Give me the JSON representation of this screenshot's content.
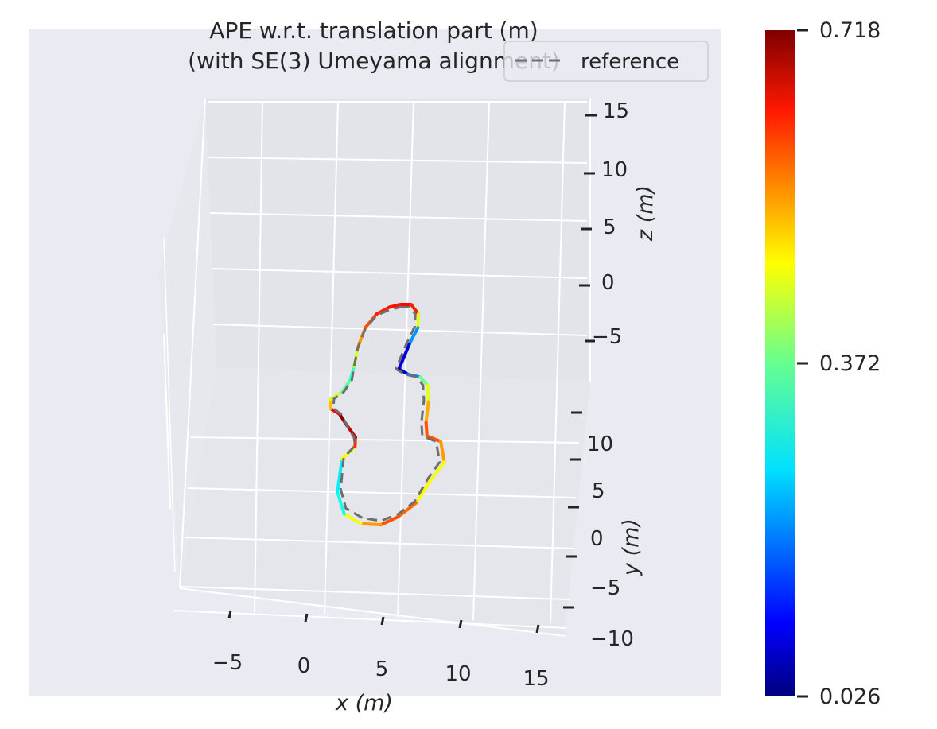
{
  "chart_data": {
    "type": "line",
    "projection": "3d",
    "title": "APE w.r.t. translation part (m)\n(with SE(3) Umeyama alignment)",
    "title_lines": [
      "APE w.r.t. translation part (m)",
      "(with SE(3) Umeyama alignment)"
    ],
    "xlabel": "x (m)",
    "ylabel": "y (m)",
    "zlabel": "z (m)",
    "x_ticks": [
      "−5",
      "0",
      "5",
      "10",
      "15"
    ],
    "y_ticks": [
      "−10",
      "−5",
      "0",
      "5",
      "10"
    ],
    "z_ticks": [
      "−5",
      "0",
      "5",
      "10",
      "15"
    ],
    "grid": true,
    "legend": {
      "placement": "top-right",
      "entries": [
        {
          "label": "reference",
          "style": "dashed",
          "color": "#6e6e6e"
        }
      ]
    },
    "colorbar": {
      "colormap": "jet",
      "min": 0.026,
      "max": 0.718,
      "tick_labels": [
        "0.718",
        "0.372",
        "0.026"
      ],
      "tick_values": [
        0.718,
        0.372,
        0.026
      ]
    },
    "series": [
      {
        "name": "reference",
        "style": "dashed",
        "color": "#6e6e6e",
        "points": [
          [
            1.3,
            7.6,
            1.8
          ],
          [
            1.9,
            7.6,
            1.8
          ],
          [
            2.3,
            7.3,
            1.6
          ],
          [
            2.3,
            6.6,
            1.4
          ],
          [
            1.8,
            5.6,
            1.1
          ],
          [
            1.2,
            4.3,
            0.6
          ],
          [
            1.8,
            3.9,
            0.6
          ],
          [
            2.6,
            3.7,
            0.6
          ],
          [
            3.0,
            3.3,
            0.4
          ],
          [
            3.1,
            2.5,
            0.1
          ],
          [
            3.0,
            1.3,
            -0.3
          ],
          [
            3.1,
            0.5,
            -0.5
          ],
          [
            4.0,
            0.2,
            -0.6
          ],
          [
            4.3,
            -1.0,
            -0.9
          ],
          [
            3.6,
            -2.0,
            -1.1
          ],
          [
            2.8,
            -3.4,
            -1.4
          ],
          [
            1.8,
            -4.1,
            -1.6
          ],
          [
            0.7,
            -4.5,
            -1.7
          ],
          [
            -0.5,
            -4.4,
            -1.6
          ],
          [
            -1.6,
            -3.8,
            -1.5
          ],
          [
            -2.0,
            -2.7,
            -1.2
          ],
          [
            -1.9,
            -0.9,
            -0.7
          ],
          [
            -1.2,
            -0.2,
            -0.5
          ],
          [
            -1.3,
            0.3,
            -0.4
          ],
          [
            -1.8,
            1.0,
            -0.2
          ],
          [
            -2.2,
            1.6,
            0.0
          ],
          [
            -2.7,
            1.9,
            0.1
          ],
          [
            -2.7,
            2.5,
            0.2
          ],
          [
            -2.1,
            2.9,
            0.3
          ],
          [
            -1.6,
            3.6,
            0.5
          ],
          [
            -1.5,
            4.4,
            0.7
          ],
          [
            -1.3,
            5.5,
            1.0
          ],
          [
            -0.9,
            6.5,
            1.3
          ],
          [
            -0.2,
            7.2,
            1.6
          ],
          [
            0.6,
            7.5,
            1.7
          ],
          [
            1.3,
            7.6,
            1.8
          ]
        ]
      },
      {
        "name": "estimate",
        "style": "solid",
        "colormap": "jet",
        "points": [
          [
            1.3,
            7.8,
            1.8,
            0.62
          ],
          [
            2.0,
            7.8,
            1.8,
            0.64
          ],
          [
            2.5,
            7.3,
            1.6,
            0.58
          ],
          [
            2.5,
            6.5,
            1.4,
            0.3
          ],
          [
            2.0,
            5.6,
            1.1,
            0.12
          ],
          [
            1.4,
            4.3,
            0.6,
            0.05
          ],
          [
            2.0,
            3.9,
            0.6,
            0.08
          ],
          [
            2.8,
            3.7,
            0.6,
            0.32
          ],
          [
            3.3,
            3.3,
            0.4,
            0.4
          ],
          [
            3.4,
            2.4,
            0.1,
            0.48
          ],
          [
            3.3,
            1.3,
            -0.3,
            0.55
          ],
          [
            3.4,
            0.5,
            -0.5,
            0.6
          ],
          [
            4.3,
            0.2,
            -0.6,
            0.55
          ],
          [
            4.6,
            -1.0,
            -0.9,
            0.5
          ],
          [
            3.8,
            -2.1,
            -1.1,
            0.4
          ],
          [
            2.9,
            -3.5,
            -1.4,
            0.52
          ],
          [
            1.8,
            -4.3,
            -1.6,
            0.6
          ],
          [
            0.7,
            -4.8,
            -1.7,
            0.55
          ],
          [
            -0.6,
            -4.8,
            -1.6,
            0.5
          ],
          [
            -1.7,
            -4.2,
            -1.5,
            0.4
          ],
          [
            -2.2,
            -2.9,
            -1.2,
            0.2
          ],
          [
            -2.0,
            -1.0,
            -0.7,
            0.35
          ],
          [
            -1.2,
            -0.3,
            -0.5,
            0.55
          ],
          [
            -1.2,
            0.3,
            -0.4,
            0.65
          ],
          [
            -1.8,
            1.0,
            -0.2,
            0.7
          ],
          [
            -2.3,
            1.6,
            0.0,
            0.72
          ],
          [
            -2.9,
            1.9,
            0.1,
            0.55
          ],
          [
            -2.9,
            2.5,
            0.2,
            0.45
          ],
          [
            -2.2,
            2.9,
            0.3,
            0.4
          ],
          [
            -1.7,
            3.6,
            0.5,
            0.3
          ],
          [
            -1.5,
            4.4,
            0.7,
            0.35
          ],
          [
            -1.3,
            5.5,
            1.0,
            0.5
          ],
          [
            -0.9,
            6.6,
            1.3,
            0.55
          ],
          [
            -0.2,
            7.3,
            1.6,
            0.6
          ],
          [
            0.6,
            7.7,
            1.7,
            0.62
          ],
          [
            1.3,
            7.8,
            1.8,
            0.62
          ]
        ]
      }
    ]
  }
}
